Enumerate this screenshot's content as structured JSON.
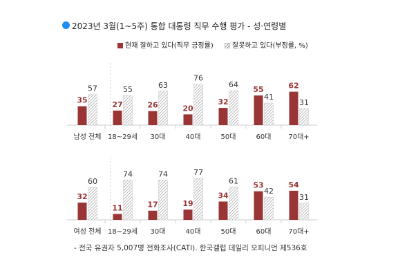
{
  "title": "2023년 3월(1~5주) 통합 대통령 직무 수행 평가 - 성·연령별",
  "legend": {
    "positive": "현재 잘하고 있다(직무 긍정률)",
    "negative": "잘못하고 있다(부정률, %)"
  },
  "footnote": "- 전국 유권자 5,007명 전화조사(CATI). 한국갤럽 데일리 오피니언 제536호",
  "colors": {
    "positive": "#9a3535",
    "negative_hatch": "#9a9a9a",
    "axis": "#cccccc"
  },
  "chart_data": [
    {
      "type": "bar",
      "categories": [
        "남성 전체",
        "18~29세",
        "30대",
        "40대",
        "50대",
        "60대",
        "70대+"
      ],
      "series": [
        {
          "name": "현재 잘하고 있다(직무 긍정률)",
          "values": [
            35,
            27,
            26,
            20,
            32,
            55,
            62
          ]
        },
        {
          "name": "잘못하고 있다(부정률, %)",
          "values": [
            57,
            55,
            63,
            76,
            64,
            41,
            31
          ]
        }
      ]
    },
    {
      "type": "bar",
      "categories": [
        "여성 전체",
        "18~29세",
        "30대",
        "40대",
        "50대",
        "60대",
        "70대+"
      ],
      "series": [
        {
          "name": "현재 잘하고 있다(직무 긍정률)",
          "values": [
            32,
            11,
            17,
            19,
            34,
            53,
            54
          ]
        },
        {
          "name": "잘못하고 있다(부정률, %)",
          "values": [
            60,
            74,
            74,
            77,
            61,
            42,
            31
          ]
        }
      ]
    }
  ]
}
